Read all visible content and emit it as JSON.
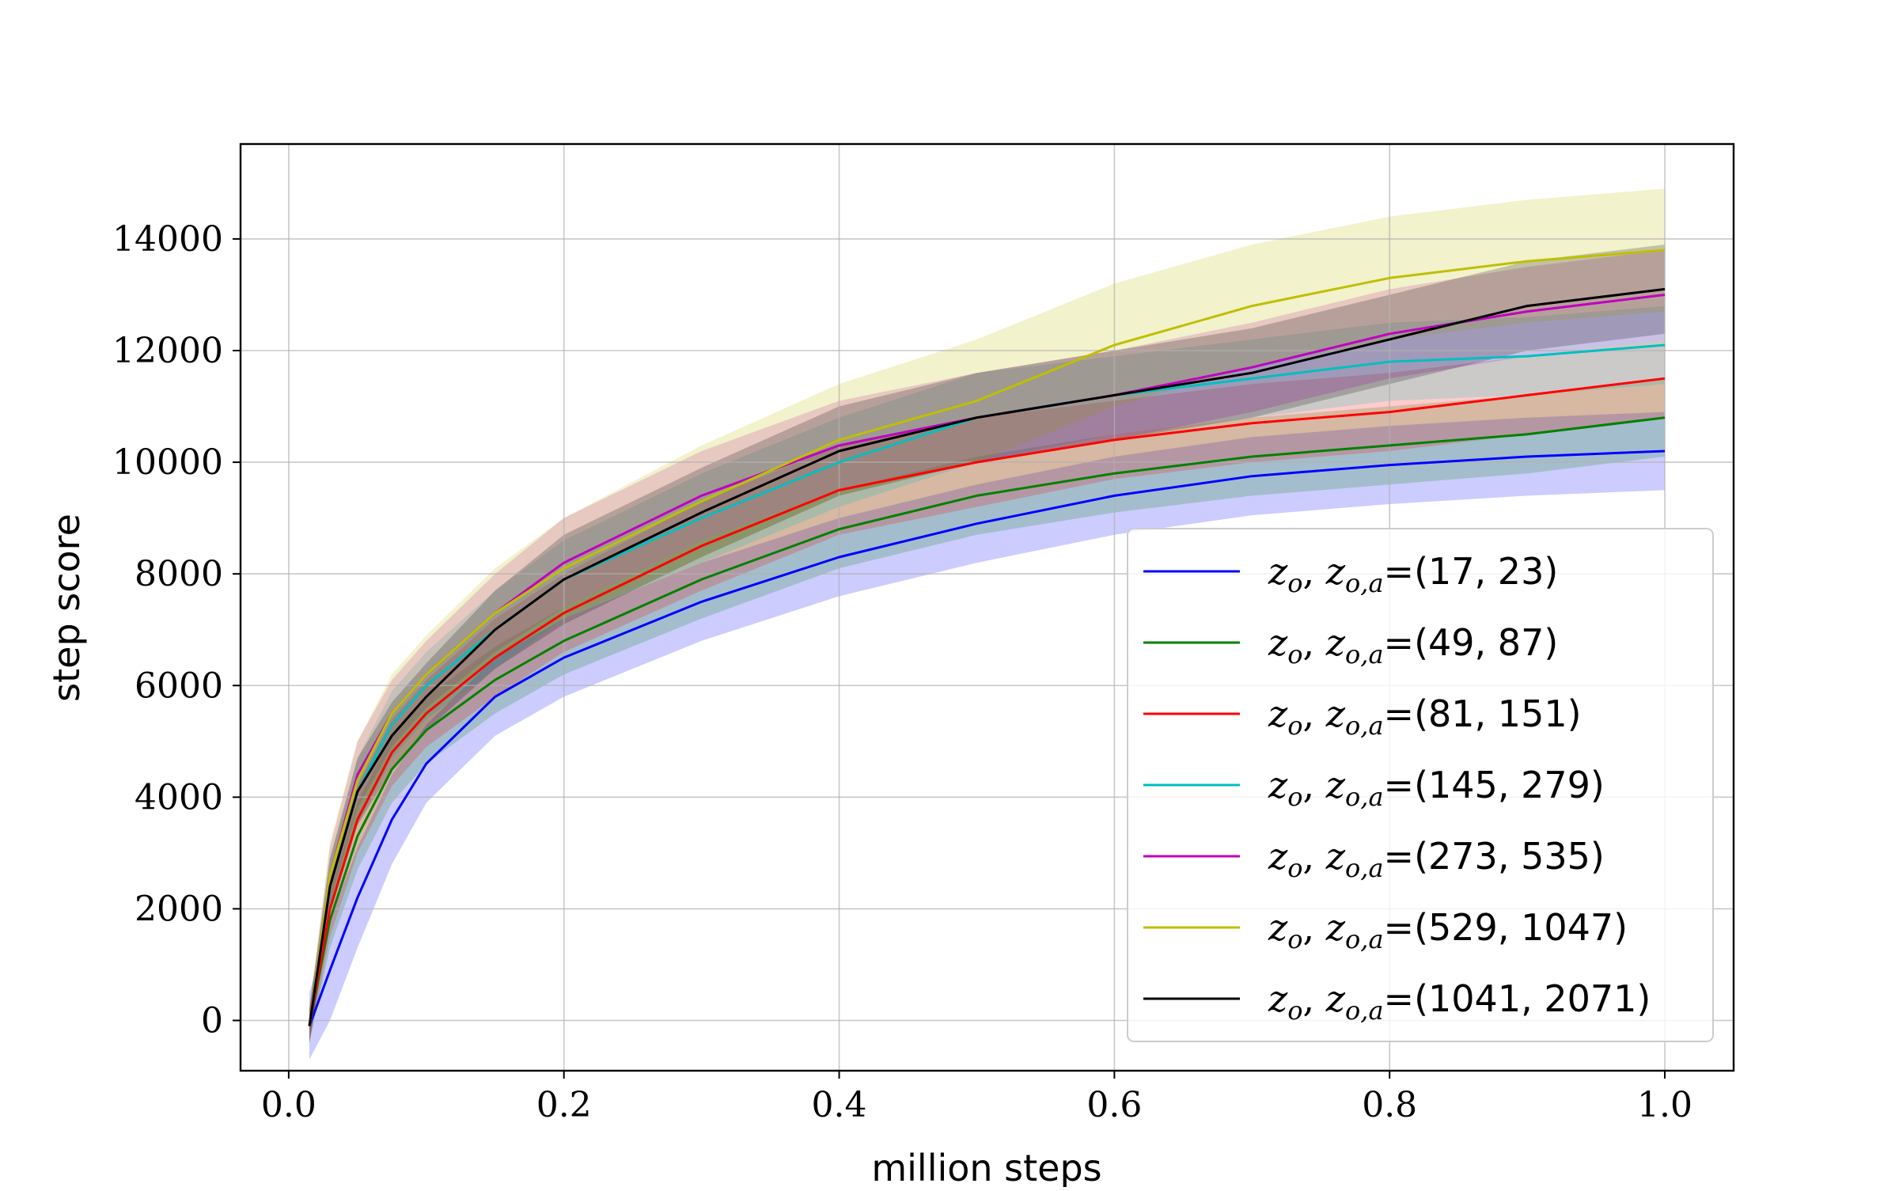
{
  "chart_data": {
    "type": "line",
    "title": "",
    "xlabel": "million steps",
    "ylabel": "step score",
    "xlim": [
      -0.035,
      1.05
    ],
    "ylim": [
      -900,
      15700
    ],
    "xticks": [
      0.0,
      0.2,
      0.4,
      0.6,
      0.8,
      1.0
    ],
    "xtick_labels": [
      "0.0",
      "0.2",
      "0.4",
      "0.6",
      "0.8",
      "1.0"
    ],
    "yticks": [
      0,
      2000,
      4000,
      6000,
      8000,
      10000,
      12000,
      14000
    ],
    "ytick_labels": [
      "0",
      "2000",
      "4000",
      "6000",
      "8000",
      "10000",
      "12000",
      "14000"
    ],
    "grid": true,
    "legend_position": "lower-right",
    "x": [
      0.015,
      0.03,
      0.05,
      0.075,
      0.1,
      0.15,
      0.2,
      0.3,
      0.4,
      0.5,
      0.6,
      0.7,
      0.8,
      0.9,
      1.0
    ],
    "series": [
      {
        "name": "z_o, z_{o,a}=(17, 23)",
        "legend_math": "z",
        "legend_sub": "o",
        "legend_sub2": "o,a",
        "legend_value": "(17, 23)",
        "color": "#0000ff",
        "values": [
          -100,
          900,
          2200,
          3600,
          4600,
          5800,
          6500,
          7500,
          8300,
          8900,
          9400,
          9750,
          9950,
          10100,
          10200
        ],
        "band": [
          600,
          900,
          900,
          800,
          700,
          700,
          700,
          700,
          700,
          700,
          700,
          700,
          700,
          700,
          700
        ]
      },
      {
        "name": "z_o, z_{o,a}=(49, 87)",
        "legend_math": "z",
        "legend_sub": "o",
        "legend_sub2": "o,a",
        "legend_value": "(49, 87)",
        "color": "#008000",
        "values": [
          -100,
          1800,
          3300,
          4500,
          5200,
          6100,
          6800,
          7900,
          8800,
          9400,
          9800,
          10100,
          10300,
          10500,
          10800
        ],
        "band": [
          300,
          500,
          600,
          600,
          600,
          600,
          600,
          700,
          700,
          700,
          700,
          700,
          700,
          700,
          700
        ]
      },
      {
        "name": "z_o, z_{o,a}=(81, 151)",
        "legend_math": "z",
        "legend_sub": "o",
        "legend_sub2": "o,a",
        "legend_value": "(81, 151)",
        "color": "#ff0000",
        "values": [
          -100,
          2000,
          3600,
          4800,
          5500,
          6500,
          7300,
          8500,
          9500,
          10000,
          10400,
          10700,
          10900,
          11200,
          11500
        ],
        "band": [
          300,
          500,
          600,
          600,
          600,
          700,
          700,
          800,
          800,
          800,
          700,
          700,
          700,
          700,
          700
        ]
      },
      {
        "name": "z_o, z_{o,a}=(145, 279)",
        "legend_math": "z",
        "legend_sub": "o",
        "legend_sub2": "o,a",
        "legend_value": "(145, 279)",
        "color": "#00bfbf",
        "values": [
          -100,
          2400,
          4100,
          5300,
          6000,
          7000,
          7900,
          9000,
          10000,
          10800,
          11200,
          11500,
          11800,
          11900,
          12100
        ],
        "band": [
          300,
          500,
          600,
          600,
          600,
          700,
          700,
          800,
          800,
          800,
          700,
          700,
          700,
          700,
          700
        ]
      },
      {
        "name": "z_o, z_{o,a}=(273, 535)",
        "legend_math": "z",
        "legend_sub": "o",
        "legend_sub2": "o,a",
        "legend_value": "(273, 535)",
        "color": "#bf00bf",
        "values": [
          -100,
          2600,
          4400,
          5500,
          6200,
          7300,
          8200,
          9400,
          10300,
          10800,
          11200,
          11700,
          12300,
          12700,
          13000
        ],
        "band": [
          300,
          500,
          600,
          600,
          600,
          700,
          800,
          800,
          800,
          800,
          800,
          800,
          800,
          800,
          800
        ]
      },
      {
        "name": "z_o, z_{o,a}=(529, 1047)",
        "legend_math": "z",
        "legend_sub": "o",
        "legend_sub2": "o,a",
        "legend_value": "(529, 1047)",
        "color": "#bfbf00",
        "values": [
          -100,
          2600,
          4300,
          5500,
          6200,
          7300,
          8100,
          9300,
          10400,
          11100,
          12100,
          12800,
          13300,
          13600,
          13800
        ],
        "band": [
          300,
          600,
          700,
          700,
          700,
          800,
          900,
          1000,
          1000,
          1100,
          1100,
          1100,
          1100,
          1100,
          1100
        ]
      },
      {
        "name": "z_o, z_{o,a}=(1041, 2071)",
        "legend_math": "z",
        "legend_sub": "o",
        "legend_sub2": "o,a",
        "legend_value": "(1041, 2071)",
        "color": "#000000",
        "values": [
          -100,
          2400,
          4100,
          5100,
          5800,
          7000,
          7900,
          9100,
          10200,
          10800,
          11200,
          11600,
          12200,
          12800,
          13100
        ],
        "band": [
          300,
          500,
          600,
          600,
          600,
          700,
          800,
          800,
          800,
          800,
          800,
          800,
          800,
          800,
          800
        ]
      }
    ]
  }
}
